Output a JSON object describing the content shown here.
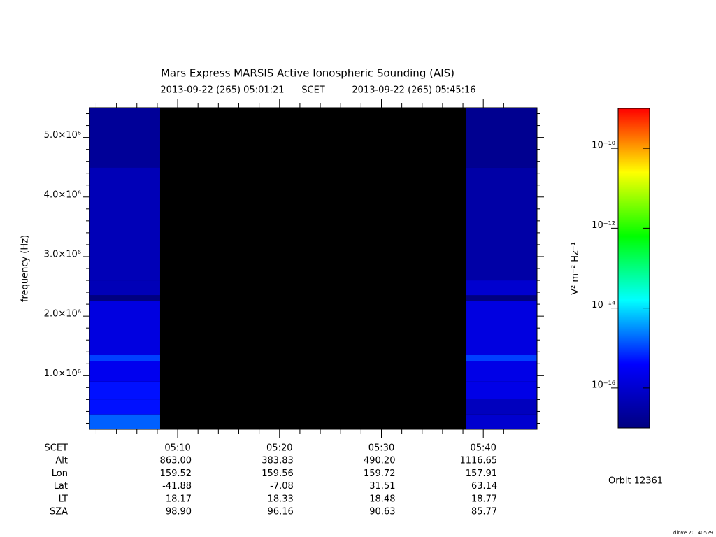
{
  "chart_data": {
    "type": "spectrogram",
    "title": "Mars Express MARSIS Active Ionospheric Sounding (AIS)",
    "subtitle_start": "2013-09-22 (265) 05:01:21",
    "subtitle_mid": "SCET",
    "subtitle_end": "2013-09-22 (265) 05:45:16",
    "y_label": "frequency (Hz)",
    "xlim": [
      1.35,
      45.27
    ],
    "xticks": [
      {
        "value": 10,
        "label": "05:10"
      },
      {
        "value": 20,
        "label": "05:20"
      },
      {
        "value": 30,
        "label": "05:30"
      },
      {
        "value": 40,
        "label": "05:40"
      }
    ],
    "xminor_ticks": [
      2,
      4,
      6,
      8,
      12,
      14,
      16,
      18,
      22,
      24,
      26,
      28,
      32,
      34,
      36,
      38,
      42,
      44
    ],
    "ylim": [
      100000,
      5500000
    ],
    "yticks": [
      {
        "value": 1000000,
        "label": "1.0×10⁶"
      },
      {
        "value": 2000000,
        "label": "2.0×10⁶"
      },
      {
        "value": 3000000,
        "label": "3.0×10⁶"
      },
      {
        "value": 4000000,
        "label": "4.0×10⁶"
      },
      {
        "value": 5000000,
        "label": "5.0×10⁶"
      }
    ],
    "yminor_ticks": [
      200000,
      400000,
      600000,
      800000,
      1200000,
      1400000,
      1600000,
      1800000,
      2200000,
      2400000,
      2600000,
      2800000,
      3200000,
      3400000,
      3600000,
      3800000,
      4200000,
      4400000,
      4600000,
      4800000,
      5200000,
      5400000
    ],
    "freq_edges": [
      100000,
      350000,
      600000,
      900000,
      1250000,
      1350000,
      2250000,
      2350000,
      2600000,
      4500000,
      5500000
    ],
    "blocks": [
      {
        "t": [
          1.35,
          8.28
        ],
        "values": [
          1.6e-15,
          5e-16,
          5e-16,
          2.5e-16,
          1e-15,
          1.6e-16,
          1e-17,
          5e-17,
          5e-17,
          2e-17
        ]
      },
      {
        "t": [
          38.34,
          45.27
        ],
        "values": [
          1e-16,
          6e-17,
          2e-16,
          2e-16,
          1e-15,
          1.6e-16,
          1e-17,
          1e-16,
          3e-17,
          1.6e-17
        ]
      }
    ],
    "background": "#000000",
    "colormap": [
      "#000080",
      "#0000ff",
      "#00ffff",
      "#00ff00",
      "#ffff00",
      "#ff0000"
    ],
    "clim": [
      1e-17,
      1e-09
    ],
    "clog": true,
    "cticks": [
      {
        "value": 1e-10,
        "label": "10⁻¹⁰"
      },
      {
        "value": 1e-12,
        "label": "10⁻¹²"
      },
      {
        "value": 1e-14,
        "label": "10⁻¹⁴"
      },
      {
        "value": 1e-16,
        "label": "10⁻¹⁶"
      }
    ],
    "c_label": "V² m⁻² Hz⁻¹",
    "ephemeris": {
      "scet_label": "SCET",
      "rows": [
        {
          "label": "Alt",
          "values": [
            "863.00",
            "383.83",
            "490.20",
            "1116.65"
          ]
        },
        {
          "label": "Lon",
          "values": [
            "159.52",
            "159.56",
            "159.72",
            "157.91"
          ]
        },
        {
          "label": "Lat",
          "values": [
            "-41.88",
            "-7.08",
            "31.51",
            "63.14"
          ]
        },
        {
          "label": "LT",
          "values": [
            "18.17",
            "18.33",
            "18.48",
            "18.77"
          ]
        },
        {
          "label": "SZA",
          "values": [
            "98.90",
            "96.16",
            "90.63",
            "85.77"
          ]
        }
      ]
    },
    "orbit": "Orbit 12361",
    "credit": "dlove 20140529"
  }
}
